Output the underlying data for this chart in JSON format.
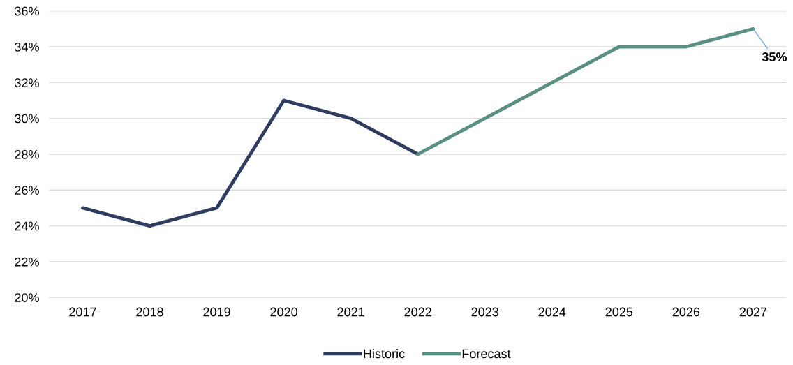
{
  "chart_data": {
    "type": "line",
    "categories": [
      "2017",
      "2018",
      "2019",
      "2020",
      "2021",
      "2022",
      "2023",
      "2024",
      "2025",
      "2026",
      "2027"
    ],
    "series": [
      {
        "name": "Historic",
        "color": "#2e3d5f",
        "values": [
          25,
          24,
          25,
          31,
          30,
          28,
          null,
          null,
          null,
          null,
          null
        ]
      },
      {
        "name": "Forecast",
        "color": "#5a8f84",
        "values": [
          null,
          null,
          null,
          null,
          null,
          28,
          30,
          32,
          34,
          34,
          35
        ],
        "value_labels": [
          null,
          null,
          null,
          null,
          null,
          null,
          null,
          null,
          null,
          null,
          "35%"
        ]
      }
    ],
    "ylim": [
      20,
      36
    ],
    "yticks": [
      {
        "value": 20,
        "label": "20%"
      },
      {
        "value": 22,
        "label": "22%"
      },
      {
        "value": 24,
        "label": "24%"
      },
      {
        "value": 26,
        "label": "26%"
      },
      {
        "value": 28,
        "label": "28%"
      },
      {
        "value": 30,
        "label": "30%"
      },
      {
        "value": 32,
        "label": "32%"
      },
      {
        "value": 34,
        "label": "34%"
      },
      {
        "value": 36,
        "label": "36%"
      }
    ],
    "grid": "y",
    "legend": "bottom",
    "marker": "none",
    "line_style": "solid"
  }
}
